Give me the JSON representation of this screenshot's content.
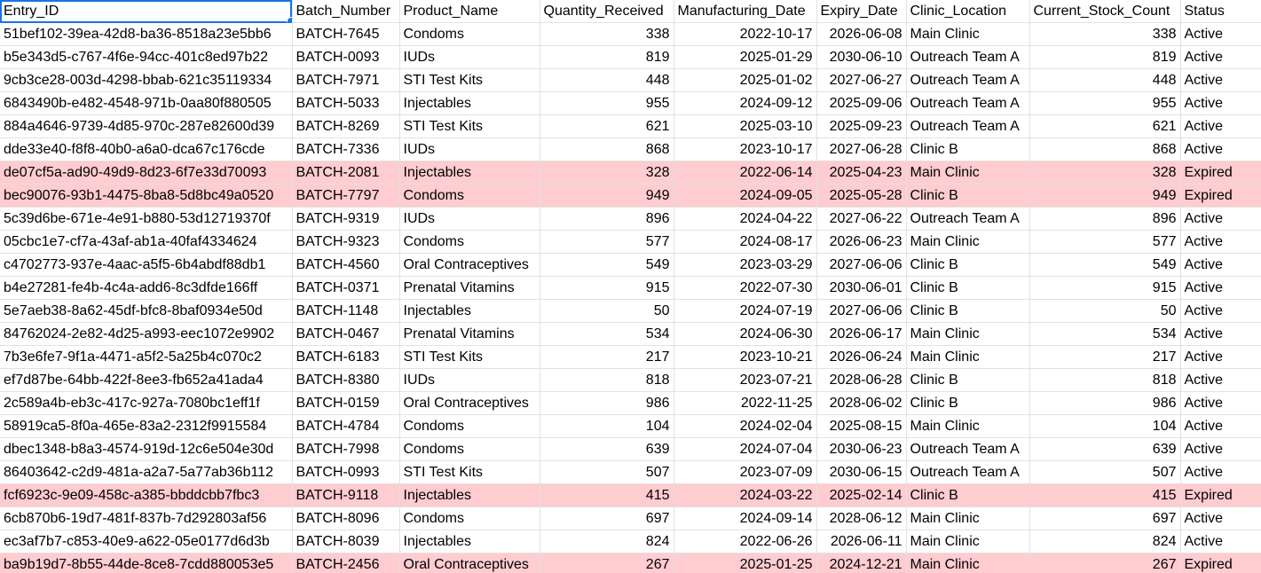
{
  "sheet": {
    "headers": [
      "Entry_ID",
      "Batch_Number",
      "Product_Name",
      "Quantity_Received",
      "Manufacturing_Date",
      "Expiry_Date",
      "Clinic_Location",
      "Current_Stock_Count",
      "Status"
    ],
    "rows": [
      [
        "51bef102-39ea-42d8-ba36-8518a23e5bb6",
        "BATCH-7645",
        "Condoms",
        "338",
        "2022-10-17",
        "2026-06-08",
        "Main Clinic",
        "338",
        "Active"
      ],
      [
        "b5e343d5-c767-4f6e-94cc-401c8ed97b22",
        "BATCH-0093",
        "IUDs",
        "819",
        "2025-01-29",
        "2030-06-10",
        "Outreach Team A",
        "819",
        "Active"
      ],
      [
        "9cb3ce28-003d-4298-bbab-621c35119334",
        "BATCH-7971",
        "STI Test Kits",
        "448",
        "2025-01-02",
        "2027-06-27",
        "Outreach Team A",
        "448",
        "Active"
      ],
      [
        "6843490b-e482-4548-971b-0aa80f880505",
        "BATCH-5033",
        "Injectables",
        "955",
        "2024-09-12",
        "2025-09-06",
        "Outreach Team A",
        "955",
        "Active"
      ],
      [
        "884a4646-9739-4d85-970c-287e82600d39",
        "BATCH-8269",
        "STI Test Kits",
        "621",
        "2025-03-10",
        "2025-09-23",
        "Outreach Team A",
        "621",
        "Active"
      ],
      [
        "dde33e40-f8f8-40b0-a6a0-dca67c176cde",
        "BATCH-7336",
        "IUDs",
        "868",
        "2023-10-17",
        "2027-06-28",
        "Clinic B",
        "868",
        "Active"
      ],
      [
        "de07cf5a-ad90-49d9-8d23-6f7e33d70093",
        "BATCH-2081",
        "Injectables",
        "328",
        "2022-06-14",
        "2025-04-23",
        "Main Clinic",
        "328",
        "Expired"
      ],
      [
        "bec90076-93b1-4475-8ba8-5d8bc49a0520",
        "BATCH-7797",
        "Condoms",
        "949",
        "2024-09-05",
        "2025-05-28",
        "Clinic B",
        "949",
        "Expired"
      ],
      [
        "5c39d6be-671e-4e91-b880-53d12719370f",
        "BATCH-9319",
        "IUDs",
        "896",
        "2024-04-22",
        "2027-06-22",
        "Outreach Team A",
        "896",
        "Active"
      ],
      [
        "05cbc1e7-cf7a-43af-ab1a-40faf4334624",
        "BATCH-9323",
        "Condoms",
        "577",
        "2024-08-17",
        "2026-06-23",
        "Main Clinic",
        "577",
        "Active"
      ],
      [
        "c4702773-937e-4aac-a5f5-6b4abdf88db1",
        "BATCH-4560",
        "Oral Contraceptives",
        "549",
        "2023-03-29",
        "2027-06-06",
        "Clinic B",
        "549",
        "Active"
      ],
      [
        "b4e27281-fe4b-4c4a-add6-8c3dfde166ff",
        "BATCH-0371",
        "Prenatal Vitamins",
        "915",
        "2022-07-30",
        "2030-06-01",
        "Clinic B",
        "915",
        "Active"
      ],
      [
        "5e7aeb38-8a62-45df-bfc8-8baf0934e50d",
        "BATCH-1148",
        "Injectables",
        "50",
        "2024-07-19",
        "2027-06-06",
        "Clinic B",
        "50",
        "Active"
      ],
      [
        "84762024-2e82-4d25-a993-eec1072e9902",
        "BATCH-0467",
        "Prenatal Vitamins",
        "534",
        "2024-06-30",
        "2026-06-17",
        "Main Clinic",
        "534",
        "Active"
      ],
      [
        "7b3e6fe7-9f1a-4471-a5f2-5a25b4c070c2",
        "BATCH-6183",
        "STI Test Kits",
        "217",
        "2023-10-21",
        "2026-06-24",
        "Main Clinic",
        "217",
        "Active"
      ],
      [
        "ef7d87be-64bb-422f-8ee3-fb652a41ada4",
        "BATCH-8380",
        "IUDs",
        "818",
        "2023-07-21",
        "2028-06-28",
        "Clinic B",
        "818",
        "Active"
      ],
      [
        "2c589a4b-eb3c-417c-927a-7080bc1eff1f",
        "BATCH-0159",
        "Oral Contraceptives",
        "986",
        "2022-11-25",
        "2028-06-02",
        "Clinic B",
        "986",
        "Active"
      ],
      [
        "58919ca5-8f0a-465e-83a2-2312f9915584",
        "BATCH-4784",
        "Condoms",
        "104",
        "2024-02-04",
        "2025-08-15",
        "Main Clinic",
        "104",
        "Active"
      ],
      [
        "dbec1348-b8a3-4574-919d-12c6e504e30d",
        "BATCH-7998",
        "Condoms",
        "639",
        "2024-07-04",
        "2030-06-23",
        "Outreach Team A",
        "639",
        "Active"
      ],
      [
        "86403642-c2d9-481a-a2a7-5a77ab36b112",
        "BATCH-0993",
        "STI Test Kits",
        "507",
        "2023-07-09",
        "2030-06-15",
        "Outreach Team A",
        "507",
        "Active"
      ],
      [
        "fcf6923c-9e09-458c-a385-bbddcbb7fbc3",
        "BATCH-9118",
        "Injectables",
        "415",
        "2024-03-22",
        "2025-02-14",
        "Clinic B",
        "415",
        "Expired"
      ],
      [
        "6cb870b6-19d7-481f-837b-7d292803af56",
        "BATCH-8096",
        "Condoms",
        "697",
        "2024-09-14",
        "2028-06-12",
        "Main Clinic",
        "697",
        "Active"
      ],
      [
        "ec3af7b7-c853-40e9-a622-05e0177d6d3b",
        "BATCH-8039",
        "Injectables",
        "824",
        "2022-06-26",
        "2026-06-11",
        "Main Clinic",
        "824",
        "Active"
      ],
      [
        "ba9b19d7-8b55-44de-8ce8-7cdd880053e5",
        "BATCH-2456",
        "Oral Contraceptives",
        "267",
        "2025-01-25",
        "2024-12-21",
        "Main Clinic",
        "267",
        "Expired"
      ]
    ]
  },
  "colors": {
    "expired_row": "#ffccd0",
    "selection": "#1a73e8",
    "gridline": "#e2e2e2"
  }
}
